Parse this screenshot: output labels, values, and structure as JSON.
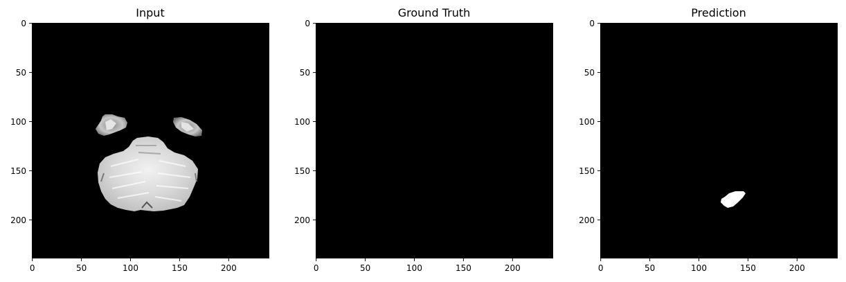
{
  "figure": {
    "panels": [
      {
        "title": "Input",
        "x_ticks": [
          "0",
          "50",
          "100",
          "150",
          "200"
        ],
        "y_ticks": [
          "0",
          "50",
          "100",
          "150",
          "200"
        ],
        "image": "grayscale brain MRI slice (cerebellum and temporal lobes)"
      },
      {
        "title": "Ground Truth",
        "x_ticks": [
          "0",
          "50",
          "100",
          "150",
          "200"
        ],
        "y_ticks": [
          "0",
          "50",
          "100",
          "150",
          "200"
        ],
        "image": "empty mask"
      },
      {
        "title": "Prediction",
        "x_ticks": [
          "0",
          "50",
          "100",
          "150",
          "200"
        ],
        "y_ticks": [
          "0",
          "50",
          "100",
          "150",
          "200"
        ],
        "image": "binary mask with one small white region"
      }
    ],
    "colors": {
      "background": "#ffffff",
      "image_background": "#000000",
      "mask_foreground": "#ffffff",
      "axis": "#000000"
    }
  }
}
